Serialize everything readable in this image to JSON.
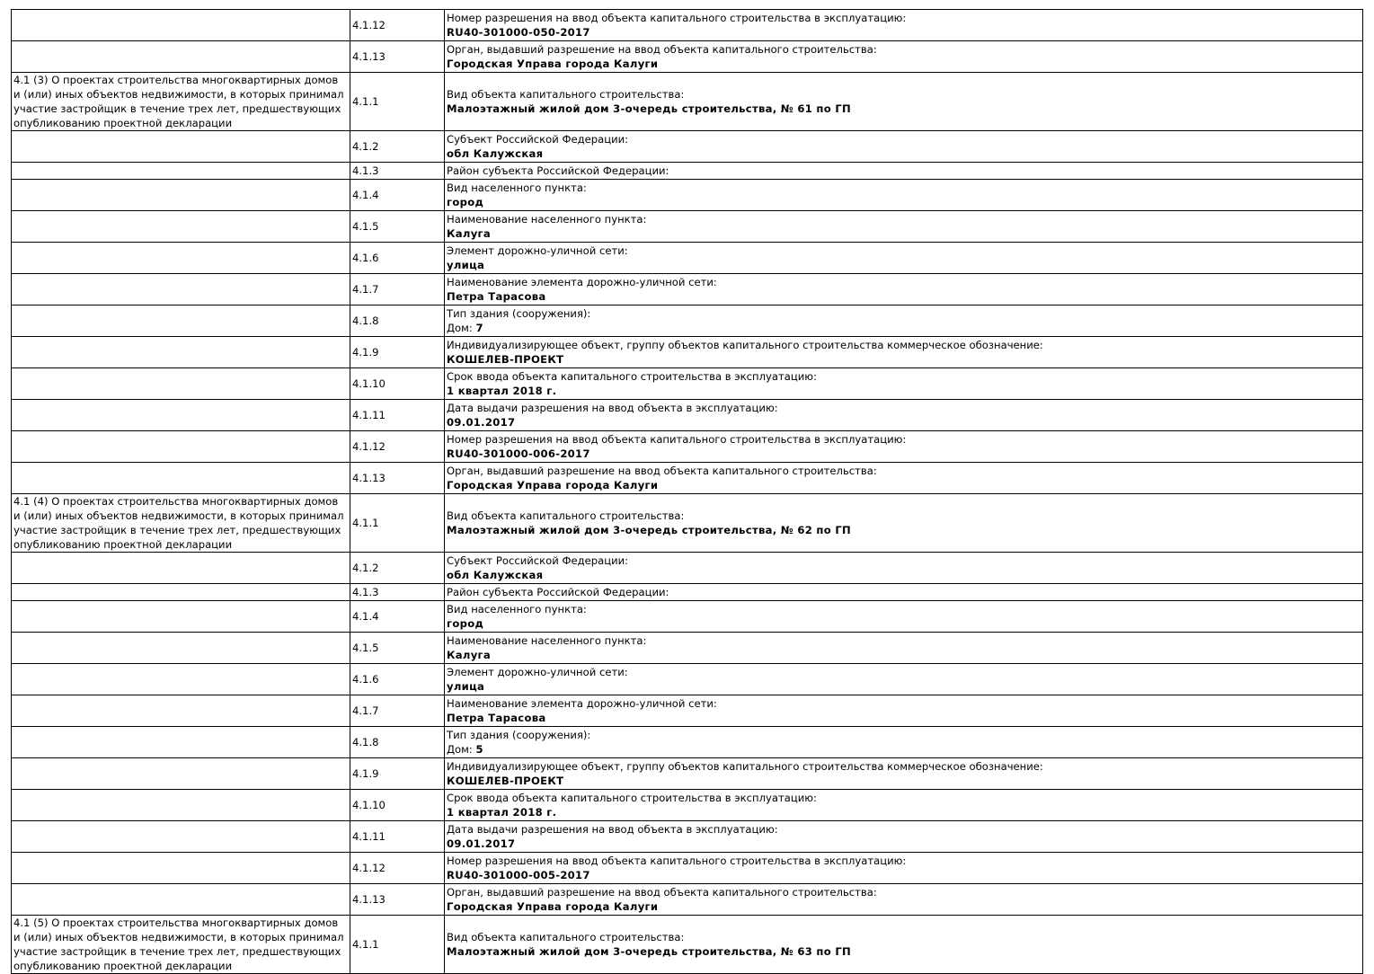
{
  "rows": [
    {
      "section": "",
      "code": "4.1.12",
      "label": "Номер разрешения на ввод объекта капитального строительства в эксплуатацию:",
      "value": "RU40-301000-050-2017"
    },
    {
      "section": "",
      "code": "4.1.13",
      "label": "Орган, выдавший разрешение на ввод объекта капитального строительства:",
      "value": "Городская Управа города Калуги"
    },
    {
      "section": "4.1 (3) О проектах строительства многоквартирных домов и (или) иных объектов недвижимости, в которых принимал участие застройщик в течение трех лет, предшествующих опубликованию проектной декларации",
      "code": "4.1.1",
      "label": "Вид объекта капитального строительства:",
      "value": "Малоэтажный жилой дом 3-очередь строительства, № 61 по ГП"
    },
    {
      "section": "",
      "code": "4.1.2",
      "label": "Субъект Российской Федерации:",
      "value": "обл Калужская"
    },
    {
      "section": "",
      "code": "4.1.3",
      "label": "Район субъекта Российской Федерации:"
    },
    {
      "section": "",
      "code": "4.1.4",
      "label": "Вид населенного пункта:",
      "value": "город"
    },
    {
      "section": "",
      "code": "4.1.5",
      "label": "Наименование населенного пункта:",
      "value": "Калуга"
    },
    {
      "section": "",
      "code": "4.1.6",
      "label": "Элемент дорожно-уличной сети:",
      "value": "улица"
    },
    {
      "section": "",
      "code": "4.1.7",
      "label": "Наименование элемента дорожно-уличной сети:",
      "value": "Петра Тарасова"
    },
    {
      "section": "",
      "code": "4.1.8",
      "label": "Тип здания (сооружения):",
      "prefix": "Дом: ",
      "value": "7"
    },
    {
      "section": "",
      "code": "4.1.9",
      "label": "Индивидуализирующее объект, группу объектов капитального строительства коммерческое обозначение:",
      "value": "КОШЕЛЕВ-ПРОЕКТ"
    },
    {
      "section": "",
      "code": "4.1.10",
      "label": "Срок ввода объекта капитального строительства в эксплуатацию:",
      "value": "1 квартал 2018 г."
    },
    {
      "section": "",
      "code": "4.1.11",
      "label": "Дата выдачи разрешения на ввод объекта в эксплуатацию:",
      "value": "09.01.2017"
    },
    {
      "section": "",
      "code": "4.1.12",
      "label": "Номер разрешения на ввод объекта капитального строительства в эксплуатацию:",
      "value": "RU40-301000-006-2017"
    },
    {
      "section": "",
      "code": "4.1.13",
      "label": "Орган, выдавший разрешение на ввод объекта капитального строительства:",
      "value": "Городская Управа города Калуги"
    },
    {
      "section": "4.1 (4) О проектах строительства многоквартирных домов и (или) иных объектов недвижимости, в которых принимал участие застройщик в течение трех лет, предшествующих опубликованию проектной декларации",
      "code": "4.1.1",
      "label": "Вид объекта капитального строительства:",
      "value": "Малоэтажный жилой дом 3-очередь строительства, № 62 по ГП"
    },
    {
      "section": "",
      "code": "4.1.2",
      "label": "Субъект Российской Федерации:",
      "value": "обл Калужская"
    },
    {
      "section": "",
      "code": "4.1.3",
      "label": "Район субъекта Российской Федерации:"
    },
    {
      "section": "",
      "code": "4.1.4",
      "label": "Вид населенного пункта:",
      "value": "город"
    },
    {
      "section": "",
      "code": "4.1.5",
      "label": "Наименование населенного пункта:",
      "value": "Калуга"
    },
    {
      "section": "",
      "code": "4.1.6",
      "label": "Элемент дорожно-уличной сети:",
      "value": "улица"
    },
    {
      "section": "",
      "code": "4.1.7",
      "label": "Наименование элемента дорожно-уличной сети:",
      "value": "Петра Тарасова"
    },
    {
      "section": "",
      "code": "4.1.8",
      "label": "Тип здания (сооружения):",
      "prefix": "Дом: ",
      "value": "5"
    },
    {
      "section": "",
      "code": "4.1.9",
      "label": "Индивидуализирующее объект, группу объектов капитального строительства коммерческое обозначение:",
      "value": "КОШЕЛЕВ-ПРОЕКТ"
    },
    {
      "section": "",
      "code": "4.1.10",
      "label": "Срок ввода объекта капитального строительства в эксплуатацию:",
      "value": "1 квартал 2018 г."
    },
    {
      "section": "",
      "code": "4.1.11",
      "label": "Дата выдачи разрешения на ввод объекта в эксплуатацию:",
      "value": "09.01.2017"
    },
    {
      "section": "",
      "code": "4.1.12",
      "label": "Номер разрешения на ввод объекта капитального строительства в эксплуатацию:",
      "value": "RU40-301000-005-2017"
    },
    {
      "section": "",
      "code": "4.1.13",
      "label": "Орган, выдавший разрешение на ввод объекта капитального строительства:",
      "value": "Городская Управа города Калуги"
    },
    {
      "section": "4.1 (5) О проектах строительства многоквартирных домов и (или) иных объектов недвижимости, в которых принимал участие застройщик в течение трех лет, предшествующих опубликованию проектной декларации",
      "code": "4.1.1",
      "label": "Вид объекта капитального строительства:",
      "value": "Малоэтажный жилой дом 3-очередь строительства, № 63 по ГП"
    }
  ]
}
